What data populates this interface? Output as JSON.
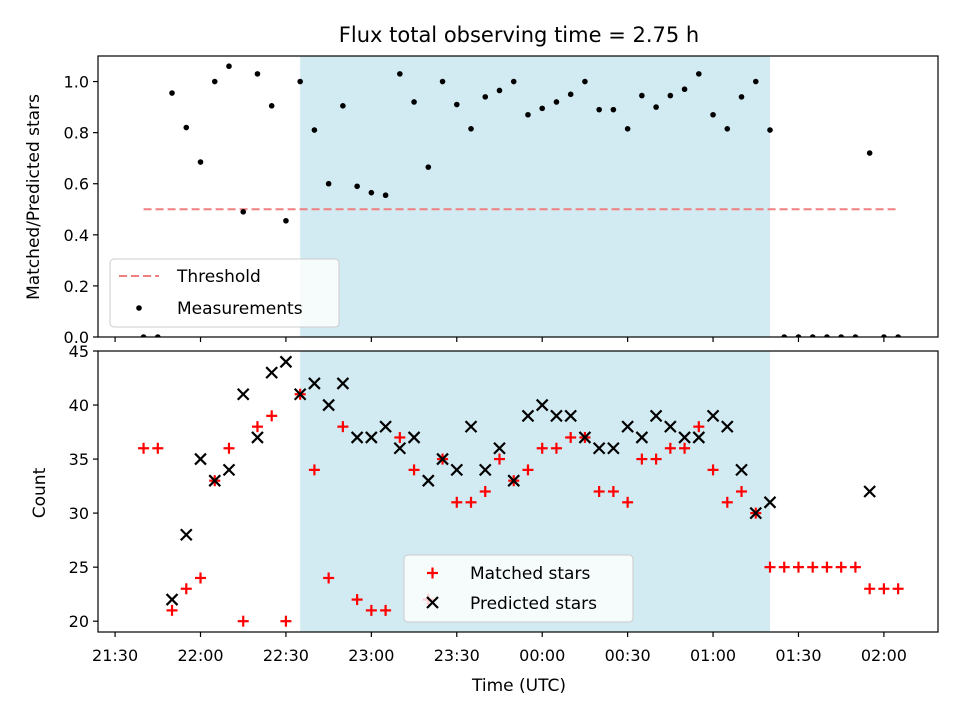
{
  "chart_data": [
    {
      "type": "scatter",
      "title": "Flux total observing time = 2.75 h",
      "xlabel": "",
      "ylabel": "Matched/Predicted stars",
      "xlim": [
        "21:24",
        "02:19"
      ],
      "ylim": [
        0,
        1.1
      ],
      "yticks": [
        0.0,
        0.2,
        0.4,
        0.6,
        0.8,
        1.0
      ],
      "ytick_labels": [
        "0.0",
        "0.2",
        "0.4",
        "0.6",
        "0.8",
        "1.0"
      ],
      "grid": false,
      "legend_position": "lower-left",
      "shaded_region": {
        "start": "22:35",
        "end": "01:20",
        "color": "#add8e6"
      },
      "threshold": {
        "name": "Threshold",
        "value": 0.5,
        "start": "21:40",
        "end": "02:05",
        "color": "#f08080"
      },
      "series": [
        {
          "name": "Measurements",
          "color": "#000000",
          "x": [
            "21:40",
            "21:45",
            "21:50",
            "21:55",
            "22:00",
            "22:05",
            "22:10",
            "22:15",
            "22:20",
            "22:25",
            "22:30",
            "22:35",
            "22:40",
            "22:45",
            "22:50",
            "22:55",
            "23:00",
            "23:05",
            "23:10",
            "23:15",
            "23:20",
            "23:25",
            "23:30",
            "23:35",
            "23:40",
            "23:45",
            "23:50",
            "23:55",
            "00:00",
            "00:05",
            "00:10",
            "00:15",
            "00:20",
            "00:25",
            "00:30",
            "00:35",
            "00:40",
            "00:45",
            "00:50",
            "00:55",
            "01:00",
            "01:05",
            "01:10",
            "01:15",
            "01:20",
            "01:25",
            "01:30",
            "01:35",
            "01:40",
            "01:45",
            "01:50",
            "01:55",
            "02:00",
            "02:05"
          ],
          "y": [
            0.0,
            0.0,
            0.955,
            0.82,
            0.685,
            1.0,
            1.06,
            0.49,
            1.03,
            0.905,
            0.455,
            1.0,
            0.81,
            0.6,
            0.905,
            0.59,
            0.565,
            0.555,
            1.03,
            0.92,
            0.665,
            1.0,
            0.91,
            0.815,
            0.94,
            0.965,
            1.0,
            0.87,
            0.895,
            0.92,
            0.95,
            1.0,
            0.89,
            0.89,
            0.815,
            0.945,
            0.9,
            0.945,
            0.97,
            1.03,
            0.87,
            0.815,
            0.94,
            1.0,
            0.81,
            0.0,
            0.0,
            0.0,
            0.0,
            0.0,
            0.0,
            0.72,
            0.0,
            0.0
          ]
        }
      ]
    },
    {
      "type": "scatter",
      "title": "",
      "xlabel": "Time (UTC)",
      "ylabel": "Count",
      "xlim": [
        "21:24",
        "02:19"
      ],
      "ylim": [
        19,
        45
      ],
      "yticks": [
        20,
        25,
        30,
        35,
        40,
        45
      ],
      "ytick_labels": [
        "20",
        "25",
        "30",
        "35",
        "40",
        "45"
      ],
      "xticks": [
        "21:30",
        "22:00",
        "22:30",
        "23:00",
        "23:30",
        "00:00",
        "00:30",
        "01:00",
        "01:30",
        "02:00"
      ],
      "grid": false,
      "legend_position": "lower-center",
      "shaded_region": {
        "start": "22:35",
        "end": "01:20",
        "color": "#add8e6"
      },
      "series": [
        {
          "name": "Matched stars",
          "marker": "plus",
          "color": "#ff0000",
          "x": [
            "21:40",
            "21:45",
            "21:50",
            "21:55",
            "22:00",
            "22:05",
            "22:10",
            "22:15",
            "22:20",
            "22:25",
            "22:30",
            "22:35",
            "22:40",
            "22:45",
            "22:50",
            "22:55",
            "23:00",
            "23:05",
            "23:10",
            "23:15",
            "23:20",
            "23:25",
            "23:30",
            "23:35",
            "23:40",
            "23:45",
            "23:50",
            "23:55",
            "00:00",
            "00:05",
            "00:10",
            "00:15",
            "00:20",
            "00:25",
            "00:30",
            "00:35",
            "00:40",
            "00:45",
            "00:50",
            "00:55",
            "01:00",
            "01:05",
            "01:10",
            "01:15",
            "01:20",
            "01:25",
            "01:30",
            "01:35",
            "01:40",
            "01:45",
            "01:50",
            "01:55",
            "02:00",
            "02:05"
          ],
          "y": [
            36,
            36,
            21,
            23,
            24,
            33,
            36,
            20,
            38,
            39,
            20,
            41,
            34,
            24,
            38,
            22,
            21,
            21,
            37,
            34,
            22,
            35,
            31,
            31,
            32,
            35,
            33,
            34,
            36,
            36,
            37,
            37,
            32,
            32,
            31,
            35,
            35,
            36,
            36,
            38,
            34,
            31,
            32,
            30,
            25,
            25,
            25,
            25,
            25,
            25,
            25,
            23,
            23,
            23
          ]
        },
        {
          "name": "Predicted stars",
          "marker": "x",
          "color": "#000000",
          "x": [
            "21:50",
            "21:55",
            "22:00",
            "22:05",
            "22:10",
            "22:15",
            "22:20",
            "22:25",
            "22:30",
            "22:35",
            "22:40",
            "22:45",
            "22:50",
            "22:55",
            "23:00",
            "23:05",
            "23:10",
            "23:15",
            "23:20",
            "23:25",
            "23:30",
            "23:35",
            "23:40",
            "23:45",
            "23:50",
            "23:55",
            "00:00",
            "00:05",
            "00:10",
            "00:15",
            "00:20",
            "00:25",
            "00:30",
            "00:35",
            "00:40",
            "00:45",
            "00:50",
            "00:55",
            "01:00",
            "01:05",
            "01:10",
            "01:15",
            "01:20",
            "01:55"
          ],
          "y": [
            22,
            28,
            35,
            33,
            34,
            41,
            37,
            43,
            44,
            41,
            42,
            40,
            42,
            37,
            37,
            38,
            36,
            37,
            33,
            35,
            34,
            38,
            34,
            36,
            33,
            39,
            40,
            39,
            39,
            37,
            36,
            36,
            38,
            37,
            39,
            38,
            37,
            37,
            39,
            38,
            34,
            30,
            31,
            32
          ]
        }
      ]
    }
  ]
}
